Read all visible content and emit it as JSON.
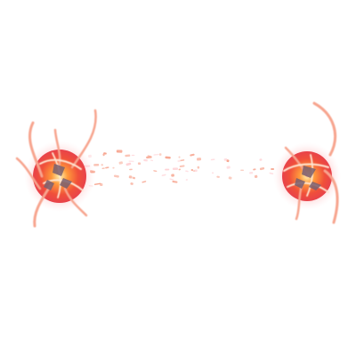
{
  "scene": {
    "background": "#ffffff",
    "effect": "fire-orb-projectile",
    "colors": {
      "core": "#fff2b0",
      "inner": "#ff9a3c",
      "mid": "#f0503a",
      "outer": "#e8424a",
      "glow": "#ffd2d6",
      "tendril": "#f7a48e",
      "tendril_light": "#ffe6d2",
      "shard": "#7a6070"
    },
    "orbs": [
      {
        "name": "left-fire-orb-icon"
      },
      {
        "name": "right-fire-orb-icon"
      }
    ]
  }
}
